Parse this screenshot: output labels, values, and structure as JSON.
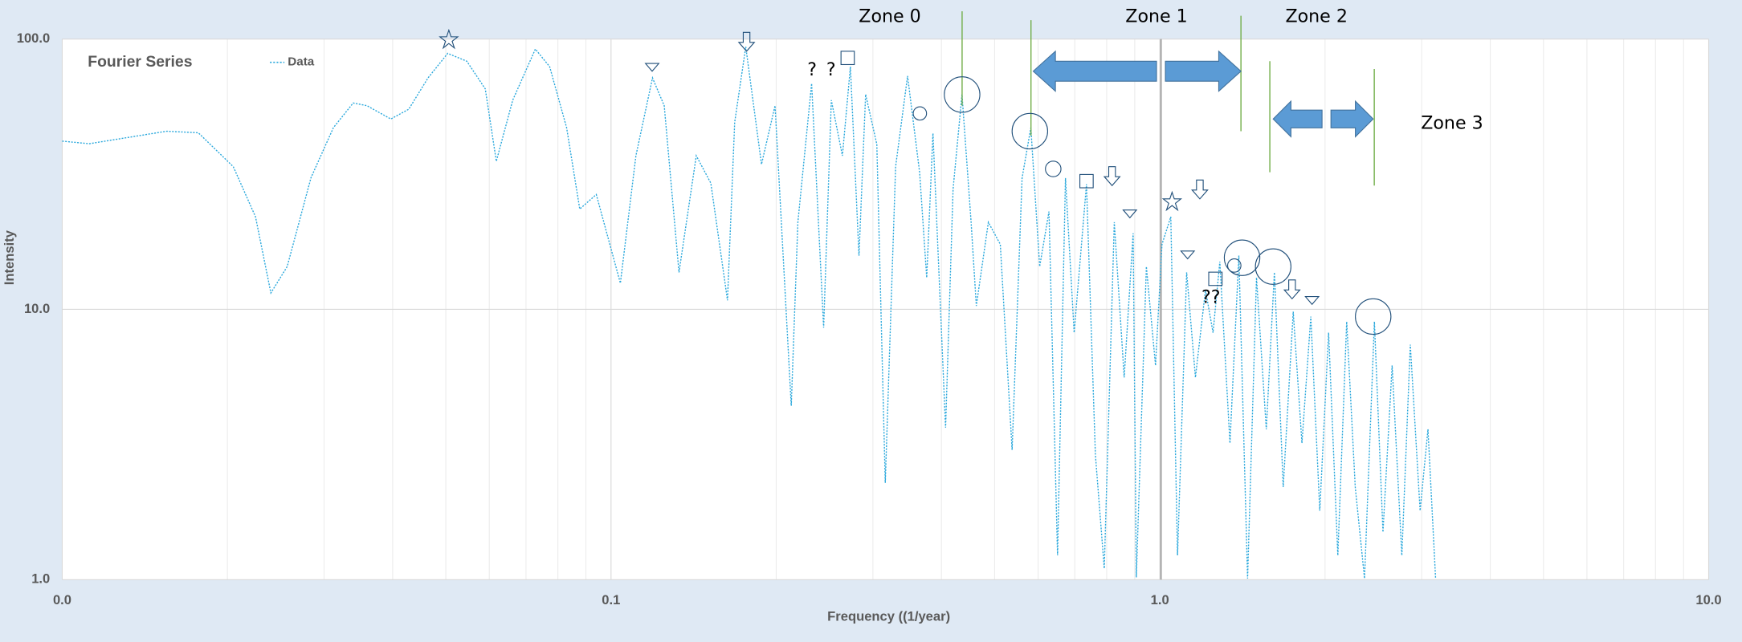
{
  "chart_data": {
    "type": "line",
    "title": "Fourier Series",
    "x_label": "Frequency ((1/year)",
    "y_label": "Intensity",
    "x_log": true,
    "y_log": true,
    "grid": true,
    "line_style": "dotted",
    "xlim": [
      0.01,
      10
    ],
    "ylim": [
      1,
      100
    ],
    "xticks": [
      {
        "value": 0.01,
        "label": "0.0"
      },
      0.1,
      {
        "value": 1,
        "label": "1.0"
      },
      {
        "value": 10,
        "label": "10.0"
      }
    ],
    "yticks": [
      {
        "value": 1,
        "label": "1.0"
      },
      {
        "value": 10,
        "label": "10.0"
      },
      {
        "value": 100,
        "label": "100.0"
      }
    ],
    "annotations": [
      "Zone 0",
      "Zone 1",
      "Zone 2",
      "Zone 3",
      "?",
      "?",
      "??"
    ],
    "x": [
      0.01,
      0.0112,
      0.0155,
      0.0177,
      0.0205,
      0.0225,
      0.024,
      0.0257,
      0.0284,
      0.0312,
      0.0339,
      0.0359,
      0.0397,
      0.0428,
      0.0464,
      0.0504,
      0.0546,
      0.059,
      0.0618,
      0.0662,
      0.0728,
      0.0773,
      0.083,
      0.0877,
      0.094,
      0.0995,
      0.104,
      0.111,
      0.119,
      0.125,
      0.133,
      0.143,
      0.152,
      0.163,
      0.168,
      0.176,
      0.188,
      0.199,
      0.213,
      0.219,
      0.232,
      0.244,
      0.252,
      0.264,
      0.273,
      0.283,
      0.291,
      0.305,
      0.316,
      0.33,
      0.347,
      0.365,
      0.376,
      0.386,
      0.407,
      0.42,
      0.436,
      0.453,
      0.463,
      0.487,
      0.512,
      0.538,
      0.561,
      0.582,
      0.604,
      0.628,
      0.651,
      0.673,
      0.698,
      0.735,
      0.763,
      0.792,
      0.826,
      0.861,
      0.894,
      0.906,
      0.945,
      0.982,
      1.009,
      1.047,
      1.077,
      1.119,
      1.161,
      1.211,
      1.25,
      1.286,
      1.342,
      1.393,
      1.445,
      1.5,
      1.563,
      1.617,
      1.678,
      1.75,
      1.815,
      1.884,
      1.956,
      2.03,
      2.11,
      2.19,
      2.27,
      2.36,
      2.46,
      2.55,
      2.65,
      2.76,
      2.86,
      2.98,
      3.08,
      3.18
    ],
    "series": [
      {
        "name": "Data",
        "color": "#2aa8dc",
        "values": [
          41.9,
          41,
          45.6,
          45,
          33.7,
          22,
          11.5,
          14.4,
          30.7,
          47,
          58,
          56.7,
          50.6,
          55,
          71.8,
          88.5,
          82.8,
          65.4,
          35.3,
          59.4,
          91.8,
          79,
          47,
          23.5,
          26.6,
          17.4,
          12.5,
          37,
          71.8,
          56.7,
          13.7,
          37,
          29.3,
          10.8,
          49.2,
          93.6,
          34.4,
          56.7,
          4.4,
          21,
          68.5,
          8.56,
          59.4,
          37,
          79,
          15.8,
          62.4,
          40.8,
          2.28,
          33.7,
          73,
          32.1,
          13.1,
          44.8,
          3.65,
          27.9,
          62.4,
          21,
          10.3,
          21,
          17.4,
          3.02,
          30.6,
          47,
          14.4,
          23,
          1.23,
          30.6,
          8.2,
          29,
          2.9,
          1.1,
          21,
          5.6,
          19.1,
          1.02,
          14.4,
          6.2,
          17.4,
          22,
          1.23,
          13.7,
          5.6,
          11.8,
          8.2,
          15,
          3.2,
          15.8,
          1.01,
          13.1,
          3.6,
          13.7,
          2.2,
          9.8,
          3.2,
          9.4,
          1.8,
          8.2,
          1.23,
          9,
          2.2,
          1.01,
          9,
          1.5,
          6.2,
          1.23,
          7.4,
          1.8,
          3.6,
          1.01
        ]
      }
    ]
  }
}
